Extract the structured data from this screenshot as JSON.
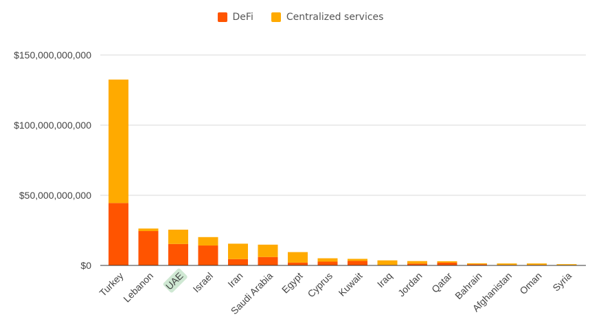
{
  "chart_data": {
    "type": "bar",
    "stacked": true,
    "title": "",
    "xlabel": "",
    "ylabel": "",
    "categories": [
      "Turkey",
      "Lebanon",
      "UAE",
      "Israel",
      "Iran",
      "Saudi Arabia",
      "Egypt",
      "Cyprus",
      "Kuwait",
      "Iraq",
      "Jordan",
      "Qatar",
      "Bahrain",
      "Afghanistan",
      "Oman",
      "Syria"
    ],
    "highlighted_category": "UAE",
    "series": [
      {
        "name": "DeFi",
        "color": "#ff5400",
        "values": [
          44500000000,
          24500000000,
          15300000000,
          14200000000,
          4500000000,
          6000000000,
          2000000000,
          2700000000,
          3200000000,
          400000000,
          1300000000,
          2000000000,
          800000000,
          400000000,
          400000000,
          300000000
        ]
      },
      {
        "name": "Centralized services",
        "color": "#ffaa00",
        "values": [
          88000000000,
          1800000000,
          10200000000,
          6000000000,
          11000000000,
          8800000000,
          7500000000,
          2400000000,
          1500000000,
          3200000000,
          1800000000,
          1000000000,
          700000000,
          1000000000,
          1000000000,
          600000000
        ]
      }
    ],
    "ylim": [
      0,
      150000000000
    ],
    "y_ticks": [
      0,
      50000000000,
      100000000000,
      150000000000
    ],
    "y_tick_labels": [
      "$0",
      "$50,000,000,000",
      "$100,000,000,000",
      "$150,000,000,000"
    ],
    "grid": true,
    "legend_position": "top-center"
  }
}
